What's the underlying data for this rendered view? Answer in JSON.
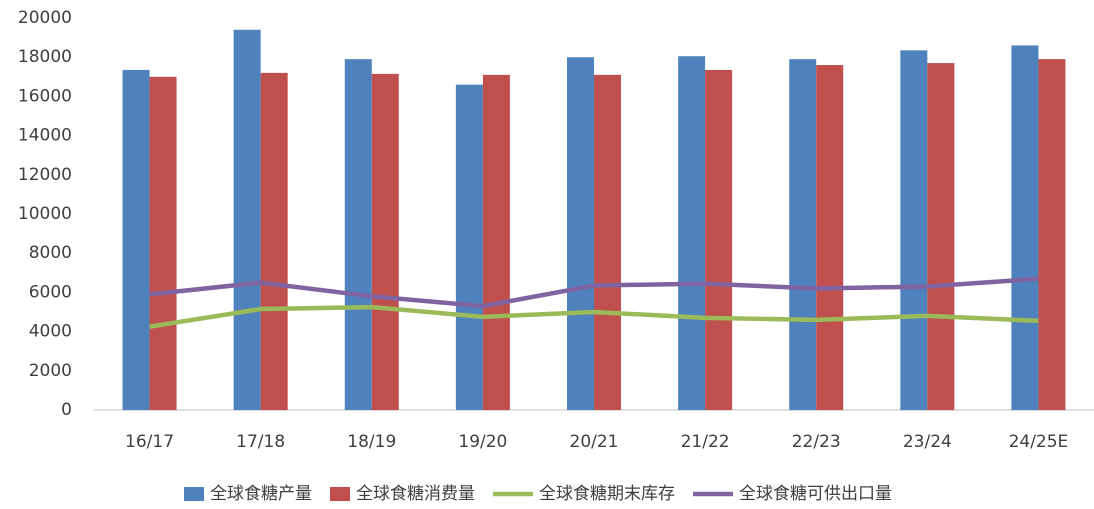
{
  "chart_data": {
    "type": "bar",
    "categories": [
      "16/17",
      "17/18",
      "18/19",
      "19/20",
      "20/21",
      "21/22",
      "22/23",
      "23/24",
      "24/25E"
    ],
    "series": [
      {
        "name": "全球食糖产量",
        "type": "bar",
        "color": "#4f81bd",
        "values": [
          17350,
          19400,
          17900,
          16600,
          18000,
          18050,
          17900,
          18350,
          18600
        ]
      },
      {
        "name": "全球食糖消费量",
        "type": "bar",
        "color": "#c0504d",
        "values": [
          17000,
          17200,
          17150,
          17100,
          17100,
          17350,
          17600,
          17700,
          17900
        ]
      },
      {
        "name": "全球食糖期末库存",
        "type": "line",
        "color": "#9bbb59",
        "values": [
          4250,
          5150,
          5250,
          4750,
          5000,
          4700,
          4600,
          4800,
          4550
        ]
      },
      {
        "name": "全球食糖可供出口量",
        "type": "line",
        "color": "#8064a2",
        "values": [
          5900,
          6500,
          5800,
          5300,
          6350,
          6450,
          6200,
          6300,
          6700
        ]
      }
    ],
    "ylim": [
      0,
      20000
    ],
    "yticks": [
      0,
      2000,
      4000,
      6000,
      8000,
      10000,
      12000,
      14000,
      16000,
      18000,
      20000
    ],
    "grid": false,
    "legend": "bottom"
  }
}
